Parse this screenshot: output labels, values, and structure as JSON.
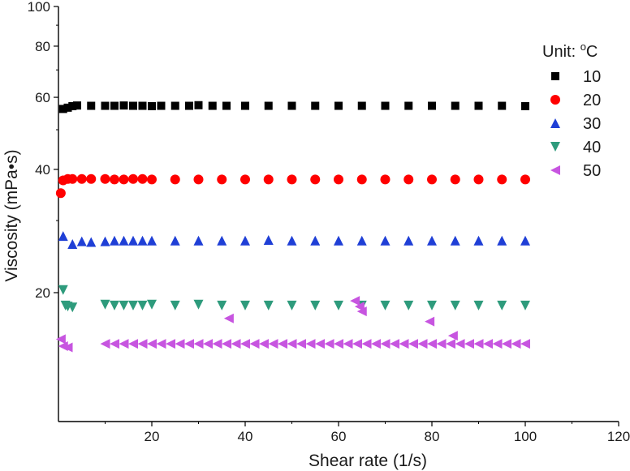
{
  "chart_data": {
    "type": "scatter",
    "title": "",
    "xlabel": "Shear rate (1/s)",
    "ylabel": "Viscosity (mPa•s)",
    "xlim": [
      0,
      120
    ],
    "ylim": [
      10,
      100
    ],
    "yscale": "log",
    "x_ticks": [
      "20",
      "40",
      "60",
      "80",
      "100",
      "120"
    ],
    "y_ticks": [
      "20",
      "40",
      "60",
      "80",
      "100"
    ],
    "grid": false,
    "legend": {
      "title_prefix": "Unit: ",
      "title_sup": "o",
      "title_suffix": "C",
      "placement": "top-right"
    },
    "series": [
      {
        "name": "10",
        "marker": "square",
        "color": "#000000",
        "x": [
          1,
          2,
          3,
          4,
          7,
          10,
          12,
          14,
          16,
          18,
          20,
          22,
          25,
          28,
          30,
          33,
          36,
          40,
          45,
          50,
          55,
          60,
          65,
          70,
          75,
          80,
          85,
          90,
          95,
          100
        ],
        "y": [
          56.2,
          56.6,
          57.1,
          57.3,
          57.2,
          57.2,
          57.2,
          57.3,
          57.2,
          57.2,
          57.1,
          57.2,
          57.2,
          57.2,
          57.4,
          57.2,
          57.2,
          57.2,
          57.2,
          57.2,
          57.2,
          57.2,
          57.2,
          57.2,
          57.2,
          57.2,
          57.2,
          57.2,
          57.2,
          57.1
        ]
      },
      {
        "name": "20",
        "marker": "circle",
        "color": "#ff0000",
        "x": [
          0.5,
          1,
          2,
          3,
          5,
          7,
          10,
          12,
          14,
          16,
          18,
          20,
          25,
          30,
          35,
          40,
          45,
          50,
          55,
          60,
          65,
          70,
          75,
          80,
          85,
          90,
          95,
          100
        ],
        "y": [
          35.0,
          37.6,
          37.9,
          37.9,
          37.9,
          37.9,
          37.9,
          37.8,
          37.8,
          37.9,
          37.9,
          37.8,
          37.8,
          37.8,
          37.8,
          37.8,
          37.8,
          37.8,
          37.8,
          37.8,
          37.8,
          37.8,
          37.8,
          37.8,
          37.8,
          37.8,
          37.8,
          37.8
        ]
      },
      {
        "name": "30",
        "marker": "triangle-up",
        "color": "#1f3fd6",
        "x": [
          1,
          3,
          5,
          7,
          10,
          12,
          14,
          16,
          18,
          20,
          25,
          30,
          35,
          40,
          45,
          50,
          55,
          60,
          65,
          70,
          75,
          80,
          85,
          90,
          95,
          100
        ],
        "y": [
          27.5,
          26.3,
          26.7,
          26.6,
          26.7,
          26.8,
          26.8,
          26.8,
          26.8,
          26.8,
          26.8,
          26.8,
          26.8,
          26.8,
          26.9,
          26.8,
          26.8,
          26.8,
          26.8,
          26.8,
          26.8,
          26.8,
          26.8,
          26.8,
          26.8,
          26.8
        ]
      },
      {
        "name": "40",
        "marker": "triangle-down",
        "color": "#2e9b7c",
        "x": [
          1,
          1.5,
          2,
          3,
          10,
          12,
          14,
          16,
          18,
          20,
          25,
          30,
          35,
          40,
          45,
          50,
          55,
          60,
          65,
          70,
          75,
          80,
          85,
          90,
          95,
          100
        ],
        "y": [
          20.3,
          18.6,
          18.5,
          18.4,
          18.7,
          18.6,
          18.6,
          18.6,
          18.6,
          18.7,
          18.6,
          18.7,
          18.6,
          18.6,
          18.6,
          18.6,
          18.6,
          18.6,
          18.6,
          18.6,
          18.6,
          18.6,
          18.6,
          18.6,
          18.6,
          18.6
        ]
      },
      {
        "name": "50",
        "marker": "triangle-left",
        "color": "#c755e0",
        "x": [
          0.5,
          1,
          2,
          10,
          12,
          14,
          16,
          18,
          20,
          22,
          24,
          26,
          28,
          30,
          32,
          34,
          36,
          38,
          40,
          42,
          44,
          46,
          48,
          50,
          52,
          54,
          56,
          58,
          60,
          62,
          64,
          66,
          68,
          70,
          72,
          74,
          76,
          78,
          80,
          82,
          84,
          86,
          88,
          90,
          92,
          94,
          96,
          98,
          100,
          36.5,
          63.5,
          64.5,
          65,
          79.5,
          84.5
        ],
        "y": [
          15.4,
          14.8,
          14.7,
          15.0,
          15.0,
          15.0,
          15.0,
          15.0,
          15.0,
          15.0,
          15.0,
          15.0,
          15.0,
          15.0,
          15.0,
          15.0,
          15.0,
          15.0,
          15.0,
          15.0,
          15.0,
          15.0,
          15.0,
          15.0,
          15.0,
          15.0,
          15.0,
          15.0,
          15.0,
          15.0,
          15.0,
          15.0,
          15.0,
          15.0,
          15.0,
          15.0,
          15.0,
          15.0,
          15.0,
          15.0,
          15.0,
          15.0,
          15.0,
          15.0,
          15.0,
          15.0,
          15.0,
          15.0,
          15.0,
          17.3,
          19.1,
          18.5,
          18.0,
          17.0,
          15.7
        ]
      }
    ]
  }
}
